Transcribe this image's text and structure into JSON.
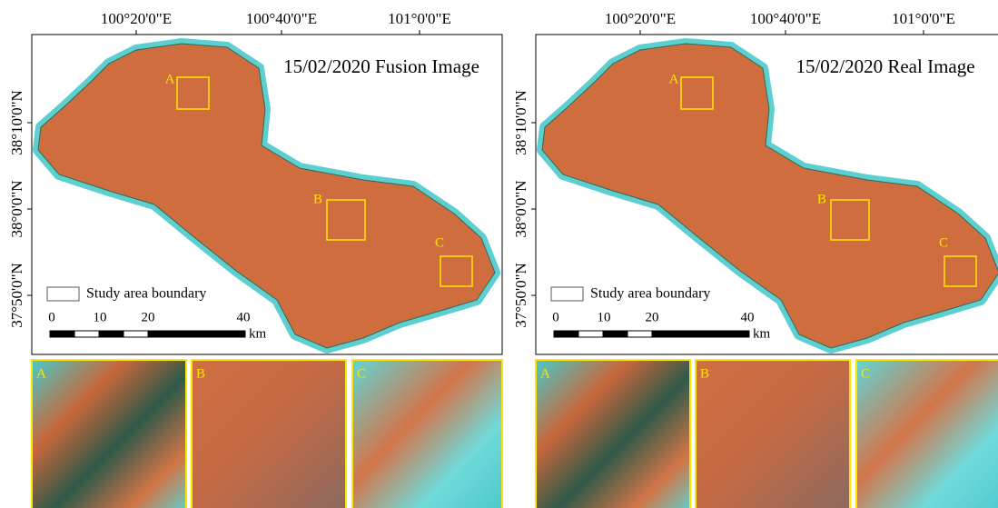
{
  "panels": [
    {
      "title": "15/02/2020  Fusion Image",
      "x_labels": [
        "100°20'0\"E",
        "100°40'0\"E",
        "101°0'0\"E"
      ],
      "y_labels": [
        "38°10'0\"N",
        "38°0'0\"N",
        "37°50'0\"N"
      ],
      "boxes": [
        "A",
        "B",
        "C"
      ],
      "legend": "Study area boundary",
      "scale": {
        "ticks": [
          "0",
          "10",
          "20",
          "40"
        ],
        "unit": "km"
      },
      "insets": [
        "A",
        "B",
        "C"
      ]
    },
    {
      "title": "15/02/2020 Real Image",
      "x_labels": [
        "100°20'0\"E",
        "100°40'0\"E",
        "101°0'0\"E"
      ],
      "y_labels": [
        "38°10'0\"N",
        "38°0'0\"N",
        "37°50'0\"N"
      ],
      "boxes": [
        "A",
        "B",
        "C"
      ],
      "legend": "Study area boundary",
      "scale": {
        "ticks": [
          "0",
          "10",
          "20",
          "40"
        ],
        "unit": "km"
      },
      "insets": [
        "A",
        "B",
        "C"
      ]
    }
  ]
}
